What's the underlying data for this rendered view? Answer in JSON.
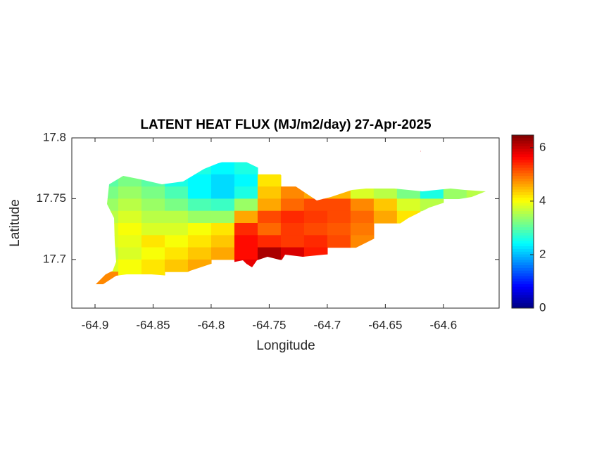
{
  "chart_data": {
    "type": "heatmap",
    "title": "LATENT HEAT FLUX (MJ/m2/day) 27-Apr-2025",
    "x_label": "Longitude",
    "y_label": "Latitude",
    "x": [
      -64.89,
      -64.87,
      -64.85,
      -64.83,
      -64.81,
      -64.79,
      -64.77,
      -64.75,
      -64.73,
      -64.71,
      -64.69,
      -64.67,
      -64.65,
      -64.63,
      -64.61,
      -64.59,
      -64.57
    ],
    "y": [
      17.785,
      17.775,
      17.765,
      17.755,
      17.745,
      17.735,
      17.725,
      17.715,
      17.705,
      17.695,
      17.685
    ],
    "values": [
      [
        null,
        null,
        null,
        null,
        null,
        null,
        null,
        null,
        null,
        null,
        null,
        null,
        null,
        5.8,
        null,
        null,
        null
      ],
      [
        null,
        null,
        null,
        2.8,
        2.6,
        2.4,
        2.6,
        null,
        null,
        null,
        null,
        null,
        null,
        null,
        null,
        null,
        null
      ],
      [
        3.0,
        3.2,
        3.0,
        2.6,
        2.4,
        2.2,
        2.4,
        4.2,
        null,
        null,
        null,
        null,
        null,
        null,
        null,
        null,
        null
      ],
      [
        3.2,
        3.4,
        3.2,
        2.9,
        2.4,
        2.2,
        2.6,
        4.4,
        4.8,
        4.6,
        4.5,
        3.8,
        3.6,
        3.2,
        2.6,
        3.4,
        3.6
      ],
      [
        3.4,
        3.6,
        3.4,
        3.2,
        2.9,
        2.8,
        3.4,
        4.6,
        5.0,
        5.2,
        5.2,
        4.8,
        4.4,
        3.8,
        3.6,
        null,
        null
      ],
      [
        3.6,
        3.8,
        3.6,
        3.6,
        3.4,
        3.4,
        4.6,
        5.2,
        5.4,
        5.3,
        5.2,
        5.0,
        4.6,
        4.2,
        null,
        null,
        null
      ],
      [
        3.8,
        4.0,
        3.8,
        3.8,
        4.0,
        4.2,
        5.4,
        5.0,
        5.3,
        5.2,
        5.1,
        4.9,
        null,
        null,
        null,
        null,
        null
      ],
      [
        3.8,
        3.9,
        4.2,
        4.0,
        4.2,
        4.4,
        5.6,
        5.4,
        5.3,
        5.4,
        5.2,
        4.8,
        null,
        null,
        null,
        null,
        null
      ],
      [
        3.6,
        3.8,
        4.0,
        4.2,
        4.4,
        4.6,
        5.6,
        6.2,
        5.9,
        5.5,
        null,
        null,
        null,
        null,
        null,
        null,
        null
      ],
      [
        3.8,
        4.0,
        4.2,
        4.4,
        4.6,
        null,
        5.8,
        null,
        null,
        null,
        null,
        null,
        null,
        null,
        null,
        null,
        null
      ],
      [
        4.8,
        4.0,
        4.2,
        null,
        null,
        null,
        null,
        null,
        null,
        null,
        null,
        null,
        null,
        null,
        null,
        null,
        null
      ]
    ],
    "xlim": [
      -64.92,
      -64.552
    ],
    "ylim": [
      17.66,
      17.8
    ],
    "xticks": [
      -64.9,
      -64.85,
      -64.8,
      -64.75,
      -64.7,
      -64.65,
      -64.6
    ],
    "yticks": [
      17.7,
      17.75,
      17.8
    ],
    "clim": [
      0,
      6.47
    ],
    "cticks": [
      0,
      2,
      4,
      6
    ],
    "colormap": "jet"
  }
}
